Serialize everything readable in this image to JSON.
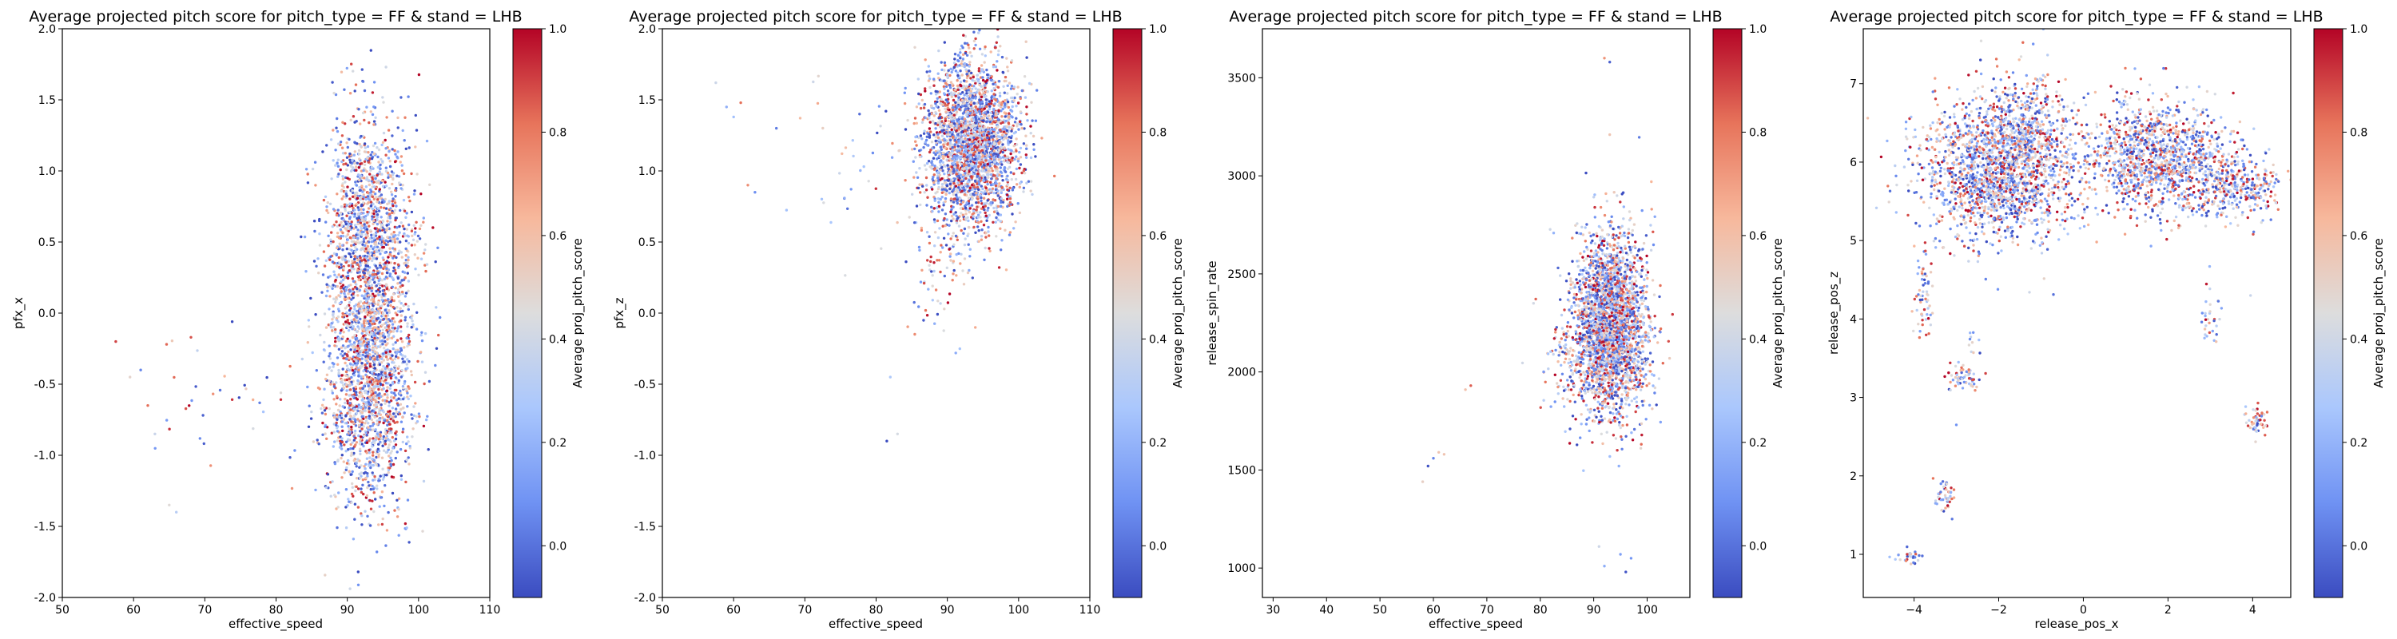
{
  "chart_data": [
    {
      "type": "scatter",
      "title": "Average projected pitch score for pitch_type = FF & stand = LHB",
      "xlabel": "effective_speed",
      "ylabel": "pfx_x",
      "xlim": [
        50,
        110
      ],
      "ylim": [
        -2.0,
        2.0
      ],
      "xticks": [
        50,
        60,
        70,
        80,
        90,
        100,
        110
      ],
      "yticks": [
        -2.0,
        -1.5,
        -1.0,
        -0.5,
        0.0,
        0.5,
        1.0,
        1.5,
        2.0
      ],
      "ytick_labels": [
        "-2.0",
        "-1.5",
        "-1.0",
        "-0.5",
        "0.0",
        "0.5",
        "1.0",
        "1.5",
        "2.0"
      ],
      "clusters": [
        {
          "cx": 93,
          "cy": -0.55,
          "sx": 3.0,
          "sy": 0.42,
          "n": 1500
        },
        {
          "cx": 93,
          "cy": 0.65,
          "sx": 3.0,
          "sy": 0.38,
          "n": 1100
        },
        {
          "cx": 93,
          "cy": 0.05,
          "sx": 3.2,
          "sy": 0.35,
          "n": 500
        },
        {
          "cx": 72,
          "cy": -0.6,
          "sx": 6.0,
          "sy": 0.3,
          "n": 35
        }
      ],
      "outliers": [
        [
          57.5,
          -0.2
        ],
        [
          59.5,
          -0.45
        ],
        [
          61,
          -0.4
        ],
        [
          62,
          -0.65
        ],
        [
          63,
          -0.85
        ],
        [
          65,
          -1.35
        ],
        [
          66,
          -1.4
        ]
      ]
    },
    {
      "type": "scatter",
      "title": "Average projected pitch score for pitch_type = FF & stand = LHB",
      "xlabel": "effective_speed",
      "ylabel": "pfx_z",
      "xlim": [
        50,
        110
      ],
      "ylim": [
        -2.0,
        2.0
      ],
      "xticks": [
        50,
        60,
        70,
        80,
        90,
        100,
        110
      ],
      "yticks": [
        -2.0,
        -1.5,
        -1.0,
        -0.5,
        0.0,
        0.5,
        1.0,
        1.5,
        2.0
      ],
      "ytick_labels": [
        "-2.0",
        "-1.5",
        "-1.0",
        "-0.5",
        "0.0",
        "0.5",
        "1.0",
        "1.5",
        "2.0"
      ],
      "clusters": [
        {
          "cx": 93.5,
          "cy": 1.2,
          "sx": 3.2,
          "sy": 0.3,
          "n": 2600
        },
        {
          "cx": 89,
          "cy": 0.4,
          "sx": 2.5,
          "sy": 0.35,
          "n": 100
        },
        {
          "cx": 78,
          "cy": 1.1,
          "sx": 4.0,
          "sy": 0.3,
          "n": 35
        }
      ],
      "outliers": [
        [
          57.5,
          1.62
        ],
        [
          59,
          1.45
        ],
        [
          60,
          1.38
        ],
        [
          61,
          1.48
        ],
        [
          62,
          0.9
        ],
        [
          63,
          0.85
        ],
        [
          66,
          1.3
        ],
        [
          81.5,
          -0.9
        ],
        [
          82,
          -0.45
        ],
        [
          83,
          -0.85
        ]
      ]
    },
    {
      "type": "scatter",
      "title": "Average projected pitch score for pitch_type = FF & stand = LHB",
      "xlabel": "effective_speed",
      "ylabel": "release_spin_rate",
      "xlim": [
        28,
        108
      ],
      "ylim": [
        850,
        3750
      ],
      "xticks": [
        30,
        40,
        50,
        60,
        70,
        80,
        90,
        100
      ],
      "yticks": [
        1000,
        1500,
        2000,
        2500,
        3000,
        3500
      ],
      "ytick_labels": [
        "1000",
        "1500",
        "2000",
        "2500",
        "3000",
        "3500"
      ],
      "clusters": [
        {
          "cx": 93,
          "cy": 2230,
          "sx": 3.5,
          "sy": 230,
          "n": 2600
        },
        {
          "cx": 85,
          "cy": 2050,
          "sx": 3.0,
          "sy": 120,
          "n": 80
        }
      ],
      "outliers": [
        [
          58,
          1440
        ],
        [
          59,
          1520
        ],
        [
          60,
          1560
        ],
        [
          61,
          1590
        ],
        [
          62,
          1580
        ],
        [
          66,
          1910
        ],
        [
          67,
          1930
        ],
        [
          92,
          3600
        ],
        [
          93,
          3580
        ],
        [
          93,
          3210
        ],
        [
          91,
          1110
        ],
        [
          92,
          1010
        ],
        [
          95,
          1070
        ],
        [
          96,
          980
        ],
        [
          97,
          1050
        ]
      ]
    },
    {
      "type": "scatter",
      "title": "Average projected pitch score for pitch_type = FF & stand = LHB",
      "xlabel": "release_pos_x",
      "ylabel": "release_pos_z",
      "xlim": [
        -5.2,
        4.9
      ],
      "ylim": [
        0.45,
        7.7
      ],
      "xticks": [
        -4,
        -2,
        0,
        2,
        4
      ],
      "xtick_labels": [
        "−4",
        "−2",
        "0",
        "2",
        "4"
      ],
      "yticks": [
        1,
        2,
        3,
        4,
        5,
        6,
        7
      ],
      "ytick_labels": [
        "1",
        "2",
        "3",
        "4",
        "5",
        "6",
        "7"
      ],
      "clusters": [
        {
          "cx": -2.0,
          "cy": 5.9,
          "sx": 0.9,
          "sy": 0.45,
          "n": 1900
        },
        {
          "cx": -1.3,
          "cy": 6.6,
          "sx": 0.4,
          "sy": 0.3,
          "n": 250
        },
        {
          "cx": 1.6,
          "cy": 6.1,
          "sx": 0.75,
          "sy": 0.35,
          "n": 1000
        },
        {
          "cx": 2.9,
          "cy": 5.8,
          "sx": 0.6,
          "sy": 0.3,
          "n": 350
        },
        {
          "cx": 3.9,
          "cy": 5.7,
          "sx": 0.4,
          "sy": 0.18,
          "n": 200
        },
        {
          "cx": -3.75,
          "cy": 4.3,
          "sx": 0.1,
          "sy": 0.25,
          "n": 60
        },
        {
          "cx": -2.8,
          "cy": 3.25,
          "sx": 0.2,
          "sy": 0.08,
          "n": 60
        },
        {
          "cx": -3.3,
          "cy": 1.75,
          "sx": 0.12,
          "sy": 0.1,
          "n": 45
        },
        {
          "cx": -4.1,
          "cy": 0.98,
          "sx": 0.14,
          "sy": 0.05,
          "n": 30
        },
        {
          "cx": 4.1,
          "cy": 2.68,
          "sx": 0.14,
          "sy": 0.1,
          "n": 50
        },
        {
          "cx": 3.0,
          "cy": 4.0,
          "sx": 0.12,
          "sy": 0.2,
          "n": 30
        },
        {
          "cx": -2.6,
          "cy": 3.7,
          "sx": 0.08,
          "sy": 0.1,
          "n": 10
        }
      ],
      "outliers": [
        [
          -3.0,
          2.65
        ],
        [
          -3.1,
          1.45
        ],
        [
          3.95,
          4.3
        ]
      ]
    }
  ],
  "colorbar": {
    "label": "Average proj_pitch_score",
    "range": [
      -0.1,
      1.0
    ],
    "ticks": [
      0.0,
      0.2,
      0.4,
      0.6,
      0.8,
      1.0
    ],
    "tick_labels": [
      "0.0",
      "0.2",
      "0.4",
      "0.6",
      "0.8",
      "1.0"
    ],
    "colormap": "coolwarm",
    "colormap_stops": [
      "#3b4cc0",
      "#6f92f3",
      "#aac7fd",
      "#dddddd",
      "#f7b89c",
      "#e7745b",
      "#b40426"
    ]
  }
}
